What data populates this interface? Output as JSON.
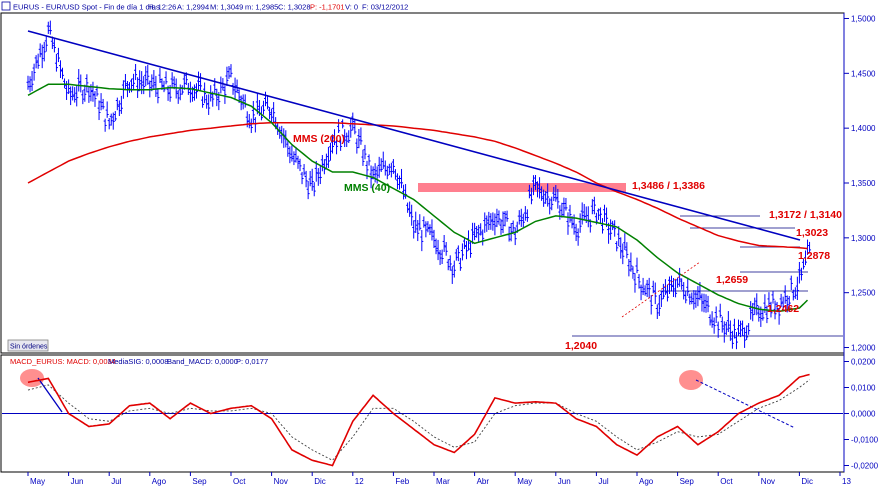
{
  "header": {
    "symbol": "EURUS",
    "title": "EURUS - EUR/USD Spot - Fin de día 1 días",
    "h": "H: 12:26",
    "a": "A: 1,2994",
    "m_high": "M: 1,3049",
    "m_low": "m: 1,2985",
    "c": "C: 1,3028",
    "p": "P: -1,1701",
    "v": "V: 0",
    "f": "F: 03/12/2012"
  },
  "macd_header": {
    "macd": "MACD_EURUS: MACD: 0,0034",
    "signal": "MediaSIG: 0,0008",
    "band": "Band_MACD: 0,0000",
    "p": "P: 0,0177"
  },
  "status_label": "Sin órdenes",
  "annotations": {
    "mms200": "MMS (200)",
    "mms40": "MMS (40)",
    "zone": "1,3486 / 1,3386",
    "r1": "1,3172 / 1,3140",
    "r2": "1,3023",
    "r3": "1,2878",
    "s1": "1,2659",
    "s2": "1,2462",
    "low": "1,2040"
  },
  "colors": {
    "price": "#0000ff",
    "mms200": "#e00000",
    "mms40": "#008000",
    "trendline": "#0000c0",
    "zone": "#ff7f8f",
    "macd": "#e00000",
    "signal": "#404040",
    "axis": "#0000c0"
  },
  "chart_data": [
    {
      "type": "line",
      "panel": "price",
      "ylim": [
        1.195,
        1.505
      ],
      "x_ticks": [
        "May",
        "Jun",
        "Jul",
        "Ago",
        "Sep",
        "Oct",
        "Nov",
        "Dic",
        "12",
        "Feb",
        "Mar",
        "Abr",
        "May",
        "Jun",
        "Jul",
        "Ago",
        "Sep",
        "Oct",
        "Nov",
        "Dic",
        "13"
      ],
      "y_ticks": [
        "1,5000",
        "1,4500",
        "1,4000",
        "1,3500",
        "1,3000",
        "1,2500",
        "1,2000"
      ],
      "y_tick_values": [
        1.5,
        1.45,
        1.4,
        1.35,
        1.3,
        1.25,
        1.2
      ],
      "x_month": [
        0,
        0.5,
        1,
        1.5,
        2,
        2.5,
        3,
        3.5,
        4,
        4.5,
        5,
        5.5,
        6,
        6.5,
        7,
        7.5,
        8,
        8.5,
        9,
        9.5,
        10,
        10.5,
        11,
        11.5,
        12,
        12.5,
        13,
        13.5,
        14,
        14.5,
        15,
        15.5,
        16,
        16.5,
        17,
        17.5,
        18,
        18.5,
        19,
        19.25
      ],
      "series": [
        {
          "name": "EURUS",
          "kind": "price",
          "values": [
            1.44,
            1.488,
            1.43,
            1.44,
            1.405,
            1.445,
            1.44,
            1.435,
            1.44,
            1.425,
            1.445,
            1.41,
            1.42,
            1.375,
            1.345,
            1.39,
            1.4,
            1.355,
            1.37,
            1.31,
            1.3,
            1.275,
            1.3,
            1.32,
            1.305,
            1.345,
            1.335,
            1.31,
            1.325,
            1.3,
            1.265,
            1.24,
            1.26,
            1.245,
            1.225,
            1.21,
            1.235,
            1.24,
            1.26,
            1.285
          ]
        },
        {
          "name": "MMS (40)",
          "kind": "ma40",
          "values": [
            1.43,
            1.44,
            1.44,
            1.438,
            1.436,
            1.435,
            1.435,
            1.437,
            1.436,
            1.432,
            1.428,
            1.42,
            1.405,
            1.385,
            1.37,
            1.36,
            1.36,
            1.355,
            1.345,
            1.335,
            1.32,
            1.305,
            1.295,
            1.3,
            1.305,
            1.315,
            1.32,
            1.318,
            1.314,
            1.31,
            1.298,
            1.282,
            1.268,
            1.258,
            1.248,
            1.24,
            1.235,
            1.233,
            1.236,
            1.245
          ]
        },
        {
          "name": "MMS (200)",
          "kind": "ma200",
          "values": [
            1.35,
            1.36,
            1.37,
            1.377,
            1.383,
            1.388,
            1.392,
            1.395,
            1.398,
            1.4,
            1.402,
            1.404,
            1.405,
            1.405,
            1.405,
            1.405,
            1.404,
            1.403,
            1.402,
            1.4,
            1.398,
            1.395,
            1.392,
            1.388,
            1.382,
            1.375,
            1.368,
            1.36,
            1.35,
            1.342,
            1.335,
            1.327,
            1.318,
            1.31,
            1.302,
            1.297,
            1.293,
            1.292,
            1.291,
            1.29
          ]
        }
      ]
    },
    {
      "type": "line",
      "panel": "macd",
      "ylim": [
        -0.0225,
        0.0225
      ],
      "y_ticks": [
        "0,0200",
        "0,0100",
        "0,0000",
        "-0,0100",
        "-0,0200"
      ],
      "y_tick_values": [
        0.02,
        0.01,
        0.0,
        -0.01,
        -0.02
      ],
      "x_month": [
        0,
        0.5,
        1,
        1.5,
        2,
        2.5,
        3,
        3.5,
        4,
        4.5,
        5,
        5.5,
        6,
        6.5,
        7,
        7.5,
        8,
        8.5,
        9,
        9.5,
        10,
        10.5,
        11,
        11.5,
        12,
        12.5,
        13,
        13.5,
        14,
        14.5,
        15,
        15.5,
        16,
        16.5,
        17,
        17.5,
        18,
        18.5,
        19,
        19.25
      ],
      "series": [
        {
          "name": "MACD",
          "kind": "macd",
          "values": [
            0.012,
            0.0135,
            0.0,
            -0.005,
            -0.004,
            0.003,
            0.004,
            -0.002,
            0.004,
            0.0,
            0.002,
            0.003,
            -0.002,
            -0.014,
            -0.018,
            -0.02,
            -0.003,
            0.007,
            0.0,
            -0.006,
            -0.012,
            -0.015,
            -0.008,
            0.006,
            0.004,
            0.0045,
            0.004,
            -0.002,
            -0.005,
            -0.012,
            -0.016,
            -0.009,
            -0.005,
            -0.012,
            -0.007,
            0.0,
            0.004,
            0.007,
            0.014,
            0.015
          ]
        },
        {
          "name": "MediaSIG",
          "kind": "signal",
          "values": [
            0.009,
            0.011,
            0.004,
            -0.002,
            -0.003,
            0.001,
            0.002,
            0.0,
            0.002,
            0.001,
            0.001,
            0.002,
            0.0,
            -0.009,
            -0.014,
            -0.018,
            -0.009,
            0.002,
            0.002,
            -0.003,
            -0.009,
            -0.013,
            -0.011,
            0.0,
            0.003,
            0.004,
            0.004,
            0.0,
            -0.003,
            -0.009,
            -0.014,
            -0.011,
            -0.007,
            -0.009,
            -0.008,
            -0.003,
            0.002,
            0.005,
            0.01,
            0.013
          ]
        }
      ]
    }
  ]
}
